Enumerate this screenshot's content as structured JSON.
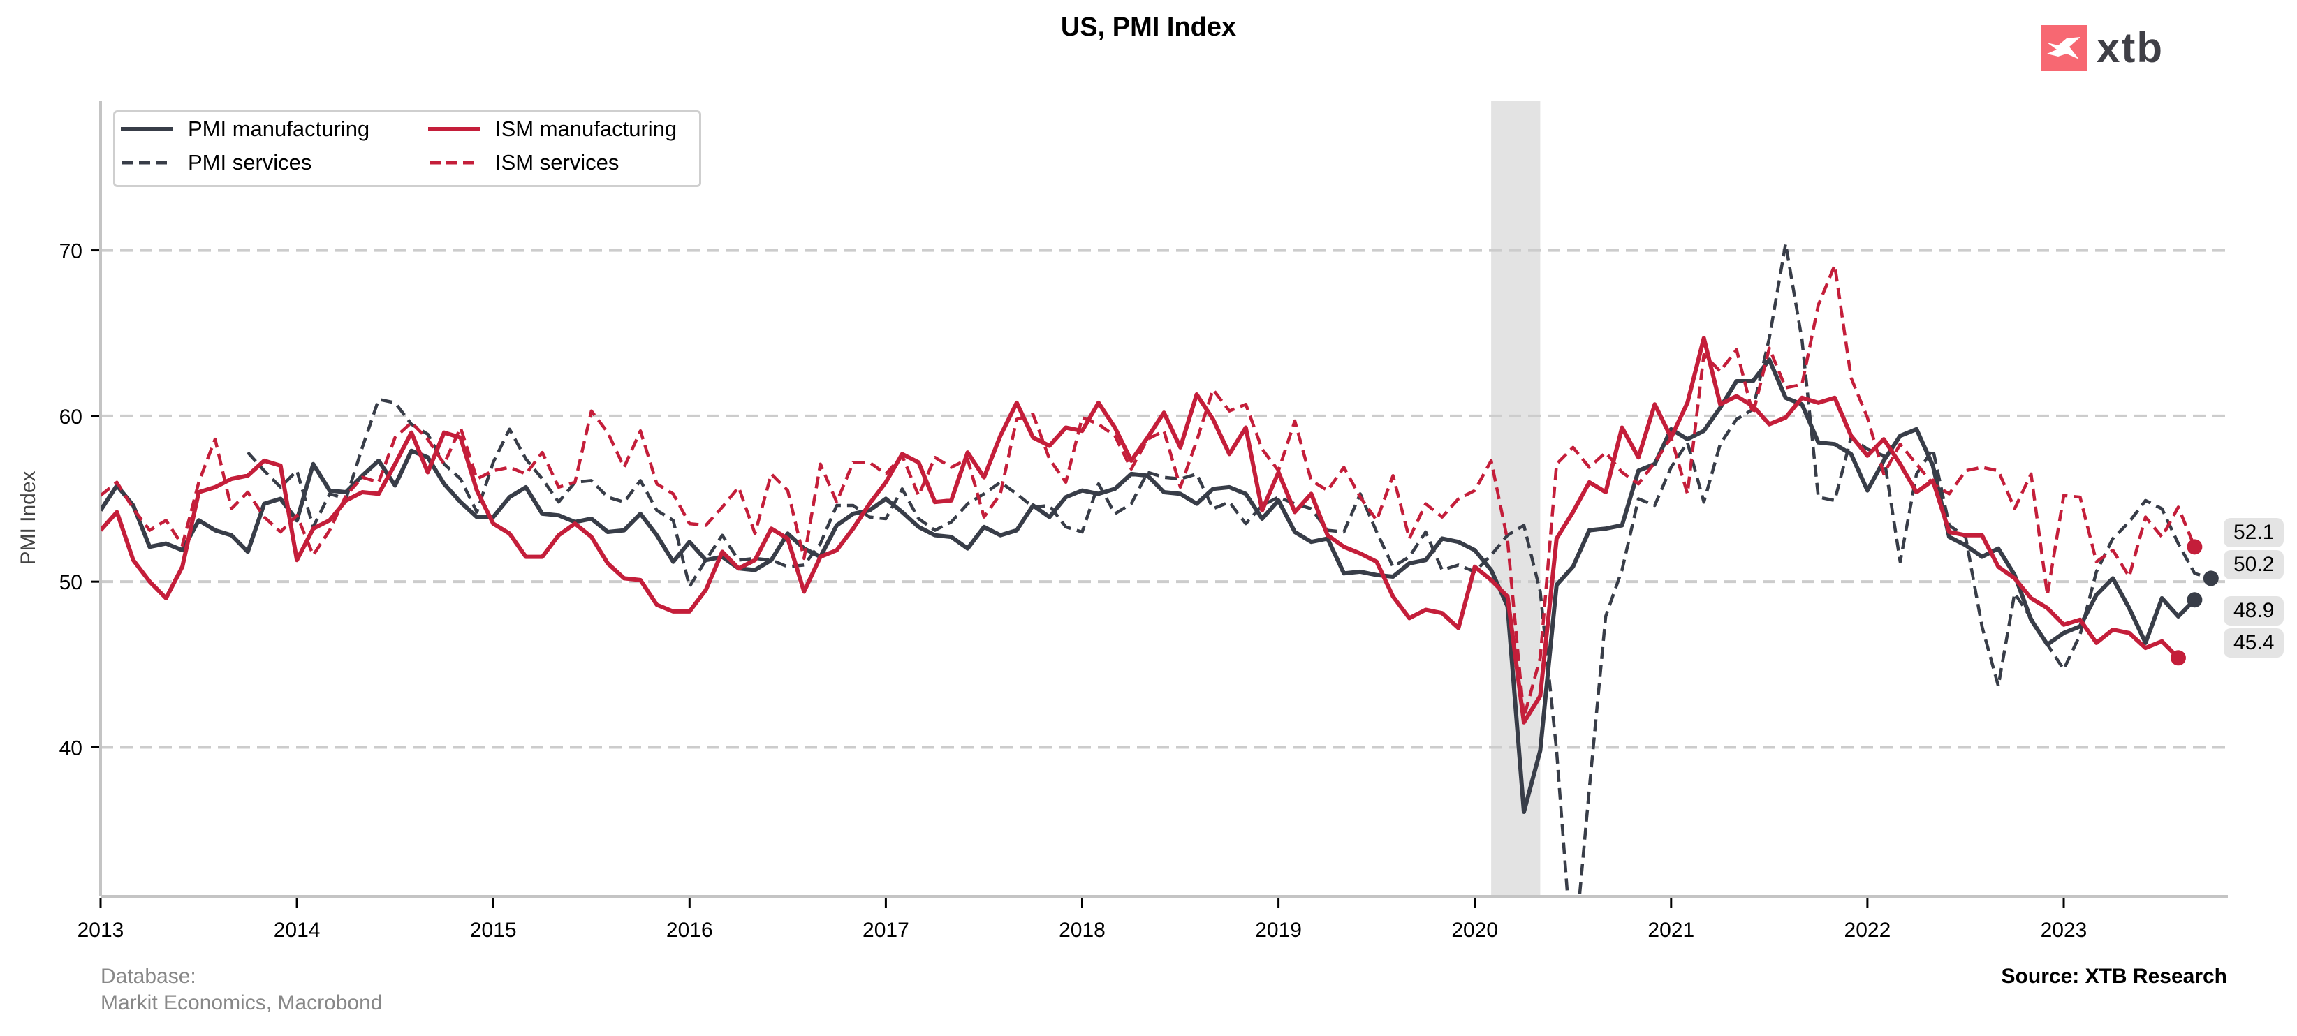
{
  "header": {
    "title": "US, PMI Index",
    "logo_text": "xtb"
  },
  "footer": {
    "database_label": "Database:",
    "database_sources": "Markit Economics, Macrobond",
    "source": "Source: XTB Research"
  },
  "colors": {
    "dark": "#383d48",
    "red": "#c41e3a",
    "grid": "#cccccc",
    "shade": "#e3e3e3",
    "logo": "#f76872"
  },
  "chart_data": {
    "type": "line",
    "title": "US, PMI Index",
    "xlabel": "",
    "ylabel": "PMI Index",
    "xlim": [
      "2013-01",
      "2023-10"
    ],
    "ylim": [
      31,
      79
    ],
    "yticks": [
      40,
      50,
      60,
      70
    ],
    "xticks": [
      "2013",
      "2014",
      "2015",
      "2016",
      "2017",
      "2018",
      "2019",
      "2020",
      "2021",
      "2022",
      "2023"
    ],
    "grid": "horizontal-dashed",
    "legend_position": "top-left",
    "shaded_period": {
      "start": "2020-02",
      "end": "2020-04",
      "label": "recession"
    },
    "series": [
      {
        "name": "PMI manufacturing",
        "style": "solid",
        "color": "dark",
        "start": "2013-01",
        "values": [
          54.3,
          55.8,
          54.6,
          52.1,
          52.3,
          51.9,
          53.7,
          53.1,
          52.8,
          51.8,
          54.7,
          55.0,
          53.7,
          57.1,
          55.5,
          55.4,
          56.4,
          57.3,
          55.8,
          57.9,
          57.5,
          55.9,
          54.8,
          53.9,
          53.9,
          55.1,
          55.7,
          54.1,
          54.0,
          53.6,
          53.8,
          53.0,
          53.1,
          54.1,
          52.8,
          51.2,
          52.4,
          51.3,
          51.5,
          50.8,
          50.7,
          51.3,
          52.9,
          52.0,
          51.5,
          53.4,
          54.1,
          54.3,
          55.0,
          54.2,
          53.3,
          52.8,
          52.7,
          52.0,
          53.3,
          52.8,
          53.1,
          54.6,
          53.9,
          55.1,
          55.5,
          55.3,
          55.6,
          56.5,
          56.4,
          55.4,
          55.3,
          54.7,
          55.6,
          55.7,
          55.3,
          53.8,
          54.9,
          53.0,
          52.4,
          52.6,
          50.5,
          50.6,
          50.4,
          50.3,
          51.1,
          51.3,
          52.6,
          52.4,
          51.9,
          50.7,
          48.5,
          36.1,
          39.8,
          49.8,
          50.9,
          53.1,
          53.2,
          53.4,
          56.7,
          57.1,
          59.2,
          58.6,
          59.1,
          60.5,
          62.1,
          62.1,
          63.4,
          61.1,
          60.7,
          58.4,
          58.3,
          57.7,
          55.5,
          57.3,
          58.8,
          59.2,
          57.0,
          52.7,
          52.2,
          51.5,
          52.0,
          50.4,
          47.7,
          46.2,
          46.9,
          47.3,
          49.2,
          50.2,
          48.4,
          46.3,
          49.0,
          47.9,
          48.9
        ]
      },
      {
        "name": "PMI services",
        "style": "dashed",
        "color": "dark",
        "start": "2013-10",
        "values": [
          57.8,
          56.7,
          55.7,
          56.7,
          53.3,
          55.3,
          55.0,
          58.1,
          61.0,
          60.8,
          59.5,
          58.9,
          57.1,
          56.2,
          54.2,
          57.2,
          59.2,
          57.4,
          56.2,
          54.8,
          56.0,
          56.1,
          55.1,
          54.8,
          56.1,
          54.3,
          53.7,
          49.7,
          51.3,
          52.8,
          51.3,
          51.4,
          51.3,
          50.9,
          51.0,
          52.3,
          54.6,
          54.6,
          53.9,
          53.8,
          55.6,
          53.8,
          53.1,
          53.6,
          54.7,
          55.3,
          56.0,
          55.3,
          54.5,
          54.6,
          53.3,
          53.0,
          55.9,
          54.1,
          54.7,
          56.6,
          56.3,
          56.2,
          56.5,
          54.4,
          54.8,
          53.5,
          54.6,
          55.1,
          54.7,
          54.4,
          53.1,
          53.0,
          55.3,
          53.0,
          50.9,
          51.5,
          53.0,
          50.7,
          51.0,
          50.6,
          51.6,
          52.8,
          53.4,
          49.4,
          39.8,
          26.7,
          37.5,
          47.9,
          50.7,
          55.0,
          54.6,
          56.9,
          58.4,
          54.8,
          58.3,
          59.8,
          60.4,
          64.7,
          70.4,
          64.6,
          55.1,
          54.9,
          58.7,
          58.0,
          57.6,
          51.2,
          56.5,
          58.0,
          53.4,
          52.7,
          47.3,
          43.7,
          49.3,
          47.8,
          46.2,
          44.7,
          46.8,
          50.6,
          52.6,
          53.6,
          54.9,
          54.4,
          52.3,
          50.5,
          50.2
        ]
      },
      {
        "name": "ISM manufacturing",
        "style": "solid",
        "color": "red",
        "start": "2013-01",
        "values": [
          53.1,
          54.2,
          51.3,
          50.0,
          49.0,
          50.9,
          55.4,
          55.7,
          56.2,
          56.4,
          57.3,
          57.0,
          51.3,
          53.2,
          53.7,
          54.9,
          55.4,
          55.3,
          57.1,
          59.0,
          56.6,
          59.0,
          58.7,
          55.5,
          53.5,
          52.9,
          51.5,
          51.5,
          52.8,
          53.5,
          52.7,
          51.1,
          50.2,
          50.1,
          48.6,
          48.2,
          48.2,
          49.5,
          51.8,
          50.8,
          51.3,
          53.2,
          52.6,
          49.4,
          51.5,
          51.9,
          53.2,
          54.7,
          56.0,
          57.7,
          57.2,
          54.8,
          54.9,
          57.8,
          56.3,
          58.8,
          60.8,
          58.7,
          58.2,
          59.3,
          59.1,
          60.8,
          59.3,
          57.3,
          58.7,
          60.2,
          58.1,
          61.3,
          59.8,
          57.7,
          59.3,
          54.3,
          56.6,
          54.2,
          55.3,
          52.8,
          52.1,
          51.7,
          51.2,
          49.1,
          47.8,
          48.3,
          48.1,
          47.2,
          50.9,
          50.1,
          49.1,
          41.5,
          43.1,
          52.6,
          54.2,
          56.0,
          55.4,
          59.3,
          57.5,
          60.7,
          58.7,
          60.8,
          64.7,
          60.7,
          61.2,
          60.6,
          59.5,
          59.9,
          61.1,
          60.8,
          61.1,
          58.8,
          57.6,
          58.6,
          57.1,
          55.4,
          56.1,
          53.0,
          52.8,
          52.8,
          50.9,
          50.2,
          49.0,
          48.4,
          47.4,
          47.7,
          46.3,
          47.1,
          46.9,
          46.0,
          46.4,
          45.4
        ]
      },
      {
        "name": "ISM services",
        "style": "dashed",
        "color": "red",
        "start": "2013-01",
        "values": [
          55.2,
          56.0,
          54.4,
          53.1,
          53.7,
          52.2,
          56.0,
          58.6,
          54.4,
          55.4,
          53.9,
          53.0,
          54.0,
          51.6,
          53.1,
          55.2,
          56.3,
          56.0,
          58.7,
          59.6,
          58.6,
          57.1,
          59.3,
          56.2,
          56.7,
          56.9,
          56.5,
          57.8,
          55.7,
          56.0,
          60.3,
          59.0,
          56.9,
          59.1,
          55.9,
          55.3,
          53.5,
          53.4,
          54.5,
          55.7,
          52.9,
          56.5,
          55.5,
          51.4,
          57.1,
          54.8,
          57.2,
          57.2,
          56.5,
          57.6,
          55.2,
          57.5,
          56.9,
          57.4,
          53.9,
          55.3,
          59.8,
          60.1,
          57.4,
          56.0,
          59.9,
          59.5,
          58.8,
          56.8,
          58.6,
          59.1,
          55.7,
          58.5,
          61.6,
          60.3,
          60.7,
          58.0,
          56.7,
          59.7,
          56.1,
          55.5,
          56.9,
          55.1,
          53.7,
          56.4,
          52.6,
          54.7,
          53.9,
          55.0,
          55.5,
          57.3,
          52.5,
          41.8,
          45.4,
          57.1,
          58.1,
          56.9,
          57.8,
          56.6,
          55.9,
          57.2,
          58.7,
          55.3,
          63.7,
          62.7,
          64.0,
          60.1,
          64.1,
          61.7,
          61.9,
          66.7,
          69.1,
          62.3,
          59.9,
          56.5,
          58.3,
          57.1,
          55.9,
          55.3,
          56.7,
          56.9,
          56.7,
          54.4,
          56.5,
          49.2,
          55.2,
          55.1,
          51.2,
          51.9,
          50.3,
          53.9,
          52.7,
          54.5,
          52.1
        ]
      }
    ],
    "end_labels": [
      {
        "series": "ISM services",
        "value": "52.1"
      },
      {
        "series": "PMI services",
        "value": "50.2"
      },
      {
        "series": "PMI manufacturing",
        "value": "48.9"
      },
      {
        "series": "ISM manufacturing",
        "value": "45.4"
      }
    ]
  }
}
